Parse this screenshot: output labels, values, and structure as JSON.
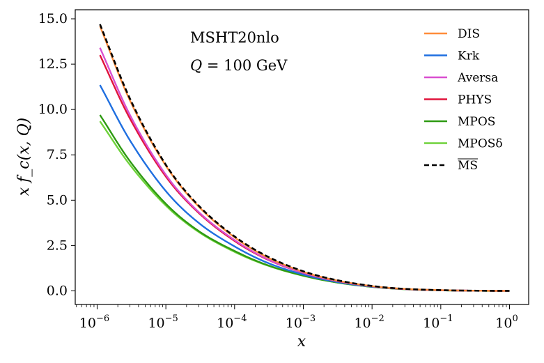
{
  "chart_data": {
    "type": "line",
    "x_scale": "log",
    "xlabel": "x",
    "ylabel": "x f_c(x, Q)",
    "xlim": [
      4.8e-07,
      1.9
    ],
    "ylim": [
      -0.75,
      15.5
    ],
    "x_ticks": [
      {
        "base": "10",
        "exp": "−6",
        "value": 1e-06
      },
      {
        "base": "10",
        "exp": "−5",
        "value": 1e-05
      },
      {
        "base": "10",
        "exp": "−4",
        "value": 0.0001
      },
      {
        "base": "10",
        "exp": "−3",
        "value": 0.001
      },
      {
        "base": "10",
        "exp": "−2",
        "value": 0.01
      },
      {
        "base": "10",
        "exp": "−1",
        "value": 0.1
      },
      {
        "base": "10",
        "exp": "0",
        "value": 1
      }
    ],
    "y_ticks": [
      {
        "label": "0.0",
        "value": 0
      },
      {
        "label": "2.5",
        "value": 2.5
      },
      {
        "label": "5.0",
        "value": 5
      },
      {
        "label": "7.5",
        "value": 7.5
      },
      {
        "label": "10.0",
        "value": 10
      },
      {
        "label": "12.5",
        "value": 12.5
      },
      {
        "label": "15.0",
        "value": 15
      }
    ],
    "annotations": {
      "set": "MSHT20nlo",
      "scale_var": "Q",
      "scale_eq": " = 100 GeV"
    },
    "x": [
      1.1e-06,
      3e-06,
      1e-05,
      3e-05,
      0.0001,
      0.0003,
      0.001,
      0.003,
      0.01,
      0.03,
      0.1,
      0.3,
      1.0
    ],
    "series": [
      {
        "name": "DIS",
        "color": "#ff8c3a",
        "dash": false,
        "values": [
          14.6,
          10.5,
          6.9,
          4.65,
          2.95,
          1.85,
          1.05,
          0.58,
          0.26,
          0.11,
          0.04,
          0.01,
          0.0
        ]
      },
      {
        "name": "Krk",
        "color": "#1f6fe0",
        "dash": false,
        "values": [
          11.35,
          8.3,
          5.5,
          3.75,
          2.45,
          1.55,
          0.9,
          0.5,
          0.23,
          0.1,
          0.035,
          0.01,
          0.0
        ]
      },
      {
        "name": "Aversa",
        "color": "#d94fd0",
        "dash": false,
        "values": [
          13.4,
          9.7,
          6.4,
          4.35,
          2.8,
          1.75,
          1.0,
          0.56,
          0.25,
          0.1,
          0.035,
          0.01,
          0.0
        ]
      },
      {
        "name": "PHYS",
        "color": "#e0143c",
        "dash": false,
        "values": [
          13.0,
          9.5,
          6.3,
          4.3,
          2.75,
          1.73,
          0.99,
          0.55,
          0.25,
          0.1,
          0.035,
          0.01,
          0.0
        ]
      },
      {
        "name": "MPOS",
        "color": "#2e9a12",
        "dash": false,
        "values": [
          9.7,
          7.15,
          4.8,
          3.3,
          2.2,
          1.42,
          0.84,
          0.47,
          0.22,
          0.09,
          0.03,
          0.008,
          0.0
        ]
      },
      {
        "name": "MPOSδ",
        "color": "#6ed23a",
        "dash": false,
        "values": [
          9.35,
          6.95,
          4.7,
          3.25,
          2.15,
          1.4,
          0.83,
          0.47,
          0.22,
          0.09,
          0.03,
          0.008,
          0.0
        ]
      },
      {
        "name": "MS",
        "color": "#000000",
        "dash": true,
        "overline": true,
        "values": [
          14.7,
          10.6,
          6.95,
          4.7,
          3.0,
          1.9,
          1.08,
          0.6,
          0.27,
          0.11,
          0.04,
          0.01,
          0.0
        ]
      }
    ]
  }
}
